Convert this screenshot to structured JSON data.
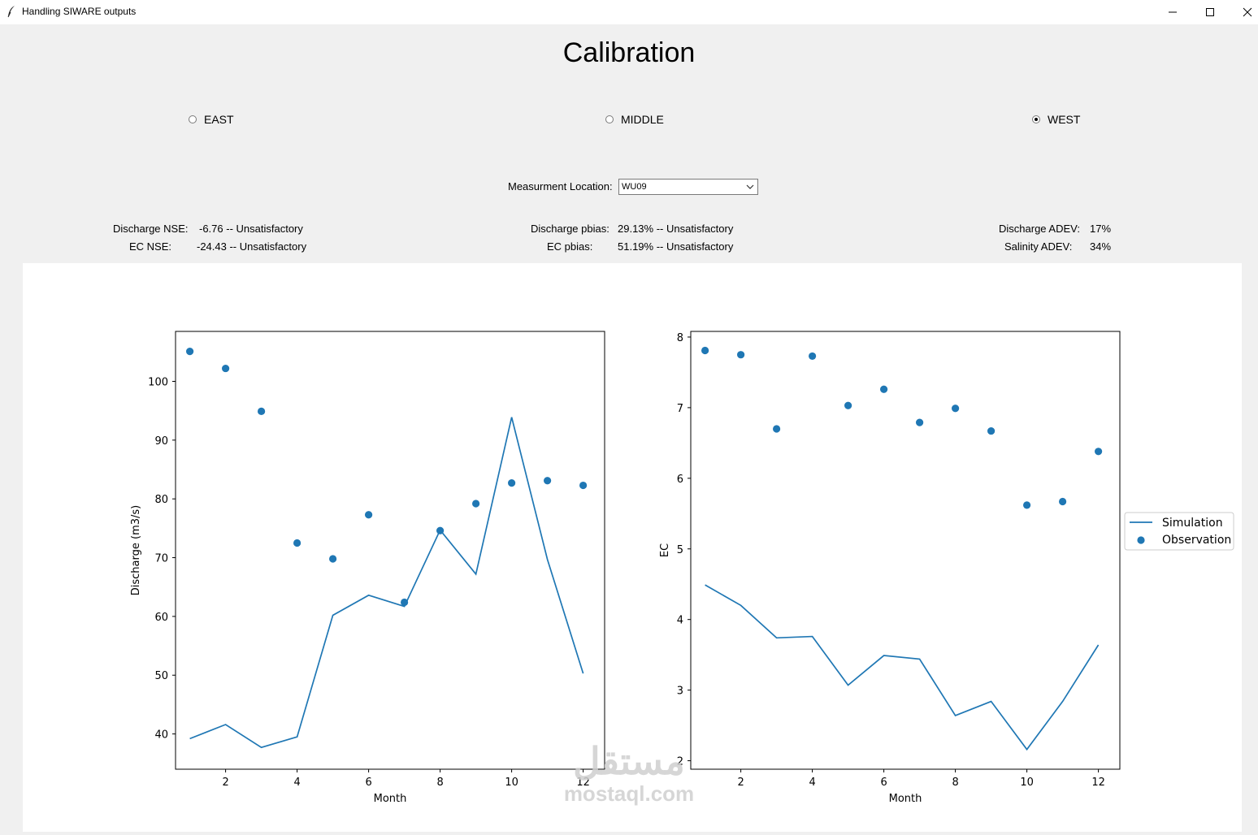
{
  "window": {
    "title": "Handling SIWARE outputs",
    "controls": [
      "minimize-icon",
      "maximize-icon",
      "close-icon"
    ]
  },
  "header": {
    "title": "Calibration"
  },
  "regions": {
    "options": [
      {
        "label": "EAST",
        "checked": false
      },
      {
        "label": "MIDDLE",
        "checked": false
      },
      {
        "label": "WEST",
        "checked": true
      }
    ]
  },
  "location": {
    "label": "Measurment Location:",
    "selected": "WU09"
  },
  "metrics": {
    "discharge_nse_label": "Discharge NSE:",
    "discharge_nse_value": "-6.76 -- Unsatisfactory",
    "ec_nse_label": "EC NSE:",
    "ec_nse_value": "-24.43 -- Unsatisfactory",
    "discharge_pbias_label": "Discharge pbias:",
    "discharge_pbias_value": "29.13% -- Unsatisfactory",
    "ec_pbias_label": "EC pbias:",
    "ec_pbias_value": "51.19% -- Unsatisfactory",
    "discharge_adev_label": "Discharge ADEV:",
    "discharge_adev_value": "17%",
    "salinity_adev_label": "Salinity ADEV:",
    "salinity_adev_value": "34%"
  },
  "chart_data": [
    {
      "type": "line",
      "xlabel": "Month",
      "ylabel": "Discharge (m3/s)",
      "xlim": [
        0.6,
        12.6
      ],
      "ylim": [
        34,
        108.5
      ],
      "xticks": [
        2,
        4,
        6,
        8,
        10,
        12
      ],
      "yticks": [
        40,
        50,
        60,
        70,
        80,
        90,
        100
      ],
      "color": "#1f77b4",
      "series": [
        {
          "name": "Simulation",
          "kind": "line",
          "x": [
            1,
            2,
            3,
            4,
            5,
            6,
            7,
            8,
            9,
            10,
            11,
            12
          ],
          "y": [
            39.2,
            41.6,
            37.7,
            39.5,
            60.2,
            63.6,
            61.7,
            74.7,
            67.2,
            93.9,
            69.7,
            50.3
          ]
        },
        {
          "name": "Observation",
          "kind": "scatter",
          "x": [
            1,
            2,
            3,
            4,
            5,
            6,
            7,
            8,
            9,
            10,
            11,
            12
          ],
          "y": [
            105.1,
            102.2,
            94.9,
            72.5,
            69.8,
            77.3,
            62.4,
            74.6,
            79.2,
            82.7,
            83.1,
            82.3
          ]
        }
      ]
    },
    {
      "type": "line",
      "xlabel": "Month",
      "ylabel": "EC",
      "xlim": [
        0.6,
        12.6
      ],
      "ylim": [
        1.88,
        8.08
      ],
      "xticks": [
        2,
        4,
        6,
        8,
        10,
        12
      ],
      "yticks": [
        2,
        3,
        4,
        5,
        6,
        7,
        8
      ],
      "color": "#1f77b4",
      "legend": "right",
      "series": [
        {
          "name": "Simulation",
          "kind": "line",
          "x": [
            1,
            2,
            3,
            4,
            5,
            6,
            7,
            8,
            9,
            10,
            11,
            12
          ],
          "y": [
            4.49,
            4.2,
            3.74,
            3.76,
            3.07,
            3.49,
            3.44,
            2.64,
            2.84,
            2.16,
            2.84,
            3.64
          ]
        },
        {
          "name": "Observation",
          "kind": "scatter",
          "x": [
            1,
            2,
            3,
            4,
            5,
            6,
            7,
            8,
            9,
            10,
            11,
            12
          ],
          "y": [
            7.81,
            7.75,
            6.7,
            7.73,
            7.03,
            7.26,
            6.79,
            6.99,
            6.67,
            5.62,
            5.67,
            6.38
          ]
        }
      ]
    }
  ],
  "watermark": {
    "arabic": "مستقل",
    "latin": "mostaql.com"
  }
}
